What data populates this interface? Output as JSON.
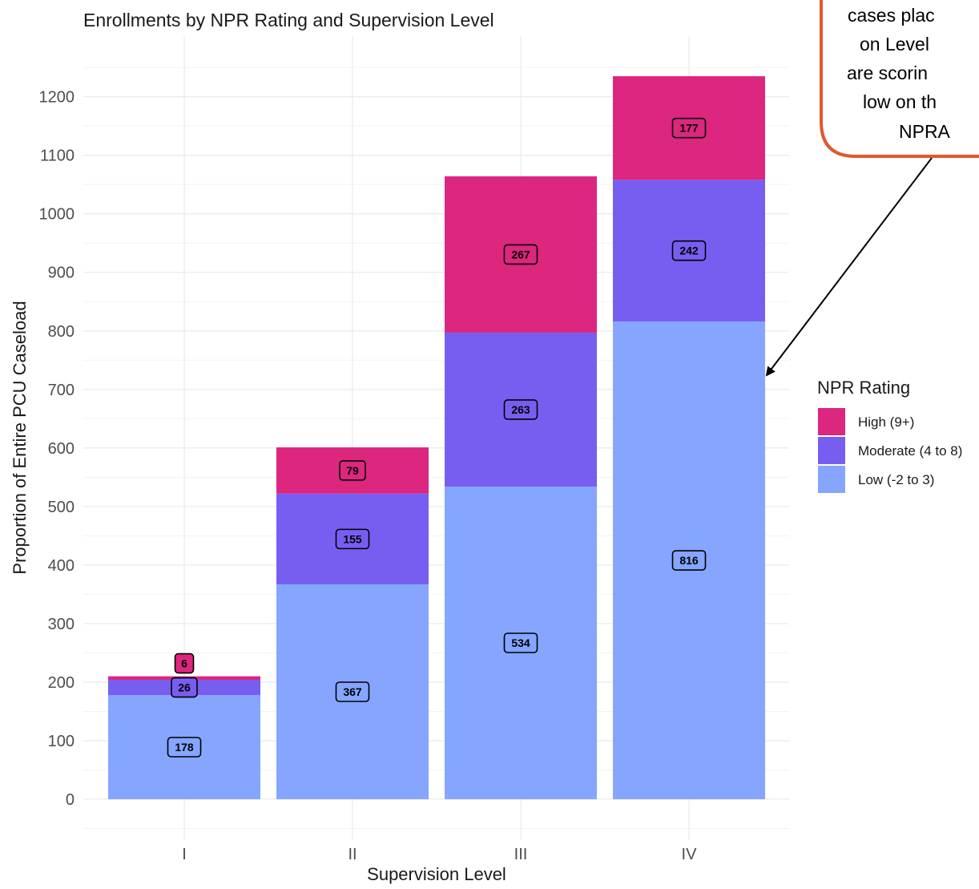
{
  "chart_data": {
    "type": "bar",
    "stacked": true,
    "title": "Enrollments by NPR Rating and Supervision Level",
    "xlabel": "Supervision Level",
    "ylabel": "Proportion of Entire PCU Caseload",
    "categories": [
      "I",
      "II",
      "III",
      "IV"
    ],
    "ylim": [
      -50,
      1300
    ],
    "yticks": [
      0,
      100,
      200,
      300,
      400,
      500,
      600,
      700,
      800,
      900,
      1000,
      1100,
      1200
    ],
    "grid": true,
    "series": [
      {
        "name": "Low (-2 to 3)",
        "values": [
          178,
          367,
          534,
          816
        ],
        "color": "#85A5FF"
      },
      {
        "name": "Moderate (4 to 8)",
        "values": [
          26,
          155,
          263,
          242
        ],
        "color": "#785EF0"
      },
      {
        "name": "High (9+)",
        "values": [
          6,
          79,
          267,
          177
        ],
        "color": "#DC267F"
      }
    ],
    "legend": {
      "title": "NPR Rating",
      "position": "right",
      "items": [
        "High (9+)",
        "Moderate (4 to 8)",
        "Low (-2 to 3)"
      ]
    }
  },
  "annotation": {
    "lines": [
      "cases plac",
      "on Level",
      "are scorin",
      "low on th",
      "NPRA"
    ],
    "border_color": "#E2572B",
    "points_to": "Low (-2 to 3) segment of supervision level IV"
  }
}
